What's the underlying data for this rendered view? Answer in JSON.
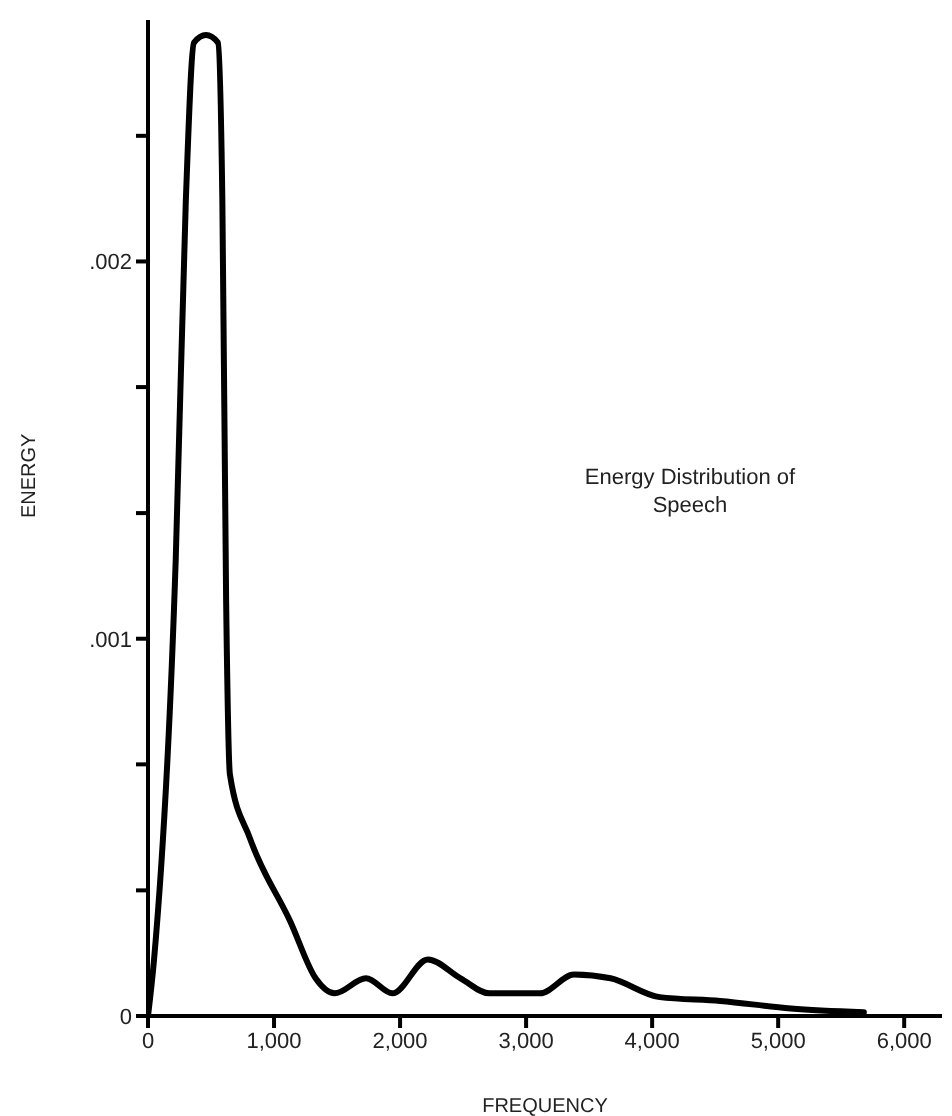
{
  "chart_data": {
    "type": "line",
    "xlabel": "FREQUENCY",
    "ylabel": "ENERGY",
    "annotations": [
      "Energy Distribution of Speech"
    ],
    "x": [
      0,
      48,
      220,
      300,
      365,
      460,
      555,
      590,
      620,
      650,
      810,
      1130,
      1330,
      1480,
      1730,
      1940,
      2220,
      2480,
      2710,
      3110,
      3380,
      3670,
      4060,
      4540,
      5100,
      5680
    ],
    "series": [
      {
        "color": "#000000",
        "values": [
          0,
          0.00015,
          0.00121,
          0.00216,
          0.00258,
          0.0026,
          0.00258,
          0.00216,
          0.0011,
          0.00064,
          0.00047,
          0.00025,
          0.0001,
          6e-05,
          0.0001,
          6e-05,
          0.00015,
          0.0001,
          6e-05,
          6e-05,
          0.00011,
          0.0001,
          5e-05,
          4e-05,
          2e-05,
          1e-05
        ]
      }
    ],
    "xlim": [
      0,
      6300
    ],
    "ylim": [
      0,
      0.00264
    ],
    "xticks": [
      0,
      {
        "value": 1000,
        "label": "1,000"
      },
      {
        "value": 2000,
        "label": "2,000"
      },
      {
        "value": 3000,
        "label": "3,000"
      },
      {
        "value": 4000,
        "label": "4,000"
      },
      {
        "value": 5000,
        "label": "5,000"
      },
      {
        "value": 6000,
        "label": "6,000"
      }
    ],
    "yticks": [
      0,
      {
        "value": 0.000333,
        "label": null
      },
      {
        "value": 0.000667,
        "label": null
      },
      {
        "value": 0.001,
        "label": ".001"
      },
      {
        "value": 0.001333,
        "label": null
      },
      {
        "value": 0.001667,
        "label": null
      },
      {
        "value": 0.002,
        "label": ".002"
      },
      {
        "value": 0.002333,
        "label": null
      }
    ],
    "grid": false,
    "legend": false,
    "marker": "none",
    "line_style": "solid"
  }
}
